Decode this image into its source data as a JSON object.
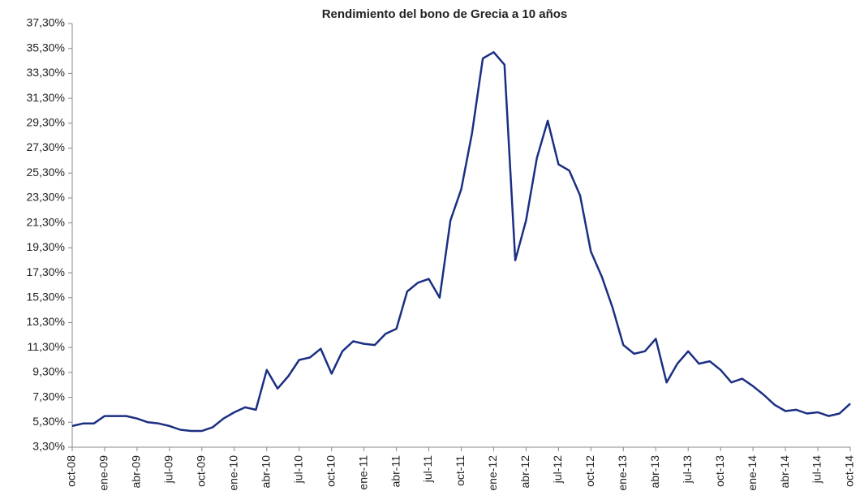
{
  "chart_data": {
    "type": "line",
    "title": "Rendimiento del bono de Grecia a 10 años",
    "categories": [
      "oct-08",
      null,
      null,
      "ene-09",
      null,
      null,
      "abr-09",
      null,
      null,
      "jul-09",
      null,
      null,
      "oct-09",
      null,
      null,
      "ene-10",
      null,
      null,
      "abr-10",
      null,
      null,
      "jul-10",
      null,
      null,
      "oct-10",
      null,
      null,
      "ene-11",
      null,
      null,
      "abr-11",
      null,
      null,
      "jul-11",
      null,
      null,
      "oct-11",
      null,
      null,
      "ene-12",
      null,
      null,
      "abr-12",
      null,
      null,
      "jul-12",
      null,
      null,
      "oct-12",
      null,
      null,
      "ene-13",
      null,
      null,
      "abr-13",
      null,
      null,
      "jul-13",
      null,
      null,
      "oct-13",
      null,
      null,
      "ene-14",
      null,
      null,
      "abr-14",
      null,
      null,
      "jul-14",
      null,
      null,
      "oct-14"
    ],
    "series": [
      {
        "name": "Rendimiento",
        "color": "#1b2f82",
        "values": [
          5.0,
          5.2,
          5.2,
          5.8,
          5.8,
          5.8,
          5.6,
          5.3,
          5.2,
          5.0,
          4.7,
          4.6,
          4.6,
          4.9,
          5.6,
          6.1,
          6.5,
          6.3,
          9.5,
          8.0,
          9.0,
          10.3,
          10.5,
          11.2,
          9.2,
          11.0,
          11.8,
          11.6,
          11.5,
          12.4,
          12.8,
          15.8,
          16.5,
          16.8,
          15.3,
          21.5,
          24.0,
          28.5,
          34.5,
          35.0,
          34.0,
          18.3,
          21.5,
          26.5,
          29.5,
          26.0,
          25.5,
          23.5,
          19.0,
          17.0,
          14.5,
          11.5,
          10.8,
          11.0,
          12.0,
          8.5,
          10.0,
          11.0,
          10.0,
          10.2,
          9.5,
          8.5,
          8.8,
          8.2,
          7.5,
          6.7,
          6.2,
          6.3,
          6.0,
          6.1,
          5.8,
          6.0,
          6.8
        ]
      }
    ],
    "ylim": [
      3.3,
      37.3
    ],
    "yticks": [
      {
        "value": 3.3,
        "label": "3,30%"
      },
      {
        "value": 5.3,
        "label": "5,30%"
      },
      {
        "value": 7.3,
        "label": "7,30%"
      },
      {
        "value": 9.3,
        "label": "9,30%"
      },
      {
        "value": 11.3,
        "label": "11,30%"
      },
      {
        "value": 13.3,
        "label": "13,30%"
      },
      {
        "value": 15.3,
        "label": "15,30%"
      },
      {
        "value": 17.3,
        "label": "17,30%"
      },
      {
        "value": 19.3,
        "label": "19,30%"
      },
      {
        "value": 21.3,
        "label": "21,30%"
      },
      {
        "value": 23.3,
        "label": "23,30%"
      },
      {
        "value": 25.3,
        "label": "25,30%"
      },
      {
        "value": 27.3,
        "label": "27,30%"
      },
      {
        "value": 29.3,
        "label": "29,30%"
      },
      {
        "value": 31.3,
        "label": "31,30%"
      },
      {
        "value": 33.3,
        "label": "33,30%"
      },
      {
        "value": 35.3,
        "label": "35,30%"
      },
      {
        "value": 37.3,
        "label": "37,30%"
      }
    ],
    "grid": false
  }
}
